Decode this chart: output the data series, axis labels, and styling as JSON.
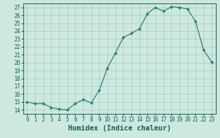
{
  "x": [
    0,
    1,
    2,
    3,
    4,
    5,
    6,
    7,
    8,
    9,
    10,
    11,
    12,
    13,
    14,
    15,
    16,
    17,
    18,
    19,
    20,
    21,
    22,
    23
  ],
  "y": [
    15.0,
    14.8,
    14.8,
    14.3,
    14.1,
    14.0,
    14.8,
    15.3,
    14.9,
    16.5,
    19.3,
    21.2,
    23.2,
    23.7,
    24.3,
    26.2,
    27.0,
    26.5,
    27.1,
    27.0,
    26.8,
    25.2,
    21.6,
    20.1
  ],
  "line_color": "#2e7d6e",
  "marker": "D",
  "marker_size": 2.2,
  "bg_color": "#cce8e0",
  "grid_color": "#aacfc8",
  "xlabel": "Humidex (Indice chaleur)",
  "xlim": [
    -0.5,
    23.5
  ],
  "ylim": [
    13.5,
    27.5
  ],
  "yticks": [
    14,
    15,
    16,
    17,
    18,
    19,
    20,
    21,
    22,
    23,
    24,
    25,
    26,
    27
  ],
  "xticks": [
    0,
    1,
    2,
    3,
    4,
    5,
    6,
    7,
    8,
    9,
    10,
    11,
    12,
    13,
    14,
    15,
    16,
    17,
    18,
    19,
    20,
    21,
    22,
    23
  ],
  "tick_color": "#1a5c50",
  "label_fontsize": 5.5,
  "xlabel_fontsize": 7.5
}
